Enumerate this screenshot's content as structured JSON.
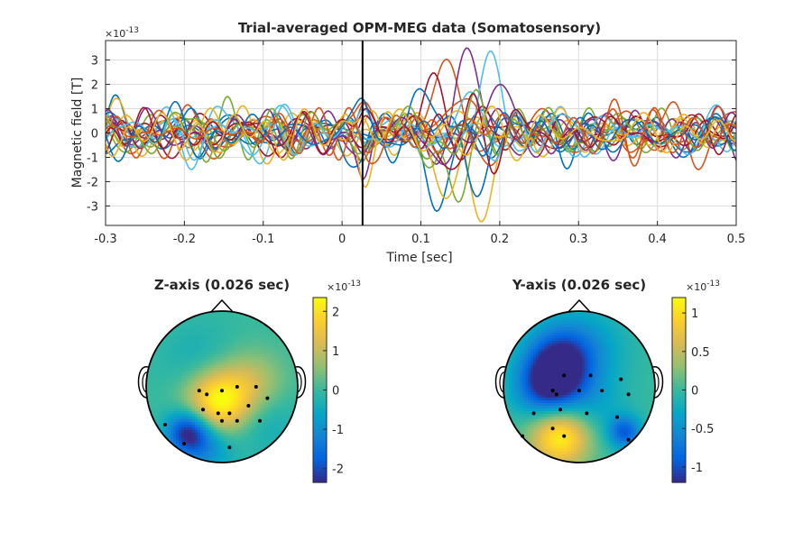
{
  "chart_data": [
    {
      "type": "line",
      "title": "Trial-averaged OPM-MEG data (Somatosensory)",
      "xlabel": "Time [sec]",
      "ylabel": "Magnetic field [T]",
      "exponent_base": "×10",
      "exponent_power": "-13",
      "xlim": [
        -0.3,
        0.5
      ],
      "ylim": [
        -3.8,
        3.8
      ],
      "xticks": [
        -0.3,
        -0.2,
        -0.1,
        0,
        0.1,
        0.2,
        0.3,
        0.4,
        0.5
      ],
      "xtick_labels": [
        "-0.3",
        "-0.2",
        "-0.1",
        "0",
        "0.1",
        "0.2",
        "0.3",
        "0.4",
        "0.5"
      ],
      "yticks": [
        3,
        2,
        1,
        0,
        -1,
        -2,
        -3
      ],
      "ytick_labels": [
        "3",
        "2",
        "1",
        "0",
        "-1",
        "-2",
        "-3"
      ],
      "grid": true,
      "marker_time": 0.026,
      "series_colors": [
        "#0072BD",
        "#D95319",
        "#EDB120",
        "#7E2F8E",
        "#77AC30",
        "#4DBEEE",
        "#A2142F"
      ],
      "series": [
        {
          "peak_time": 0.12,
          "peak_value": -3.2
        },
        {
          "peak_time": 0.13,
          "peak_value": 2.9
        },
        {
          "peak_time": 0.18,
          "peak_value": -3.7
        },
        {
          "peak_time": 0.16,
          "peak_value": 3.4
        },
        {
          "peak_time": 0.14,
          "peak_value": -2.6
        },
        {
          "peak_time": 0.19,
          "peak_value": 2.6
        },
        {
          "peak_time": 0.12,
          "peak_value": 2.4
        },
        {
          "peak_time": 0.17,
          "peak_value": -2.3
        },
        {
          "peak_time": 0.15,
          "peak_value": 2.1
        },
        {
          "peak_time": 0.13,
          "peak_value": -2.0
        },
        {
          "peak_time": 0.2,
          "peak_value": 1.8
        },
        {
          "peak_time": 0.11,
          "peak_value": -1.7
        },
        {
          "peak_time": 0.16,
          "peak_value": 1.5
        },
        {
          "peak_time": 0.14,
          "peak_value": -1.4
        },
        {
          "peak_time": 0.12,
          "peak_value": 1.2
        },
        {
          "peak_time": 0.18,
          "peak_value": -1.1
        },
        {
          "peak_time": 0.15,
          "peak_value": 1.0
        },
        {
          "peak_time": 0.13,
          "peak_value": -0.9
        },
        {
          "peak_time": 0.17,
          "peak_value": 0.8
        },
        {
          "peak_time": 0.14,
          "peak_value": -0.7
        },
        {
          "peak_time": 0.16,
          "peak_value": 0.7
        },
        {
          "peak_time": 0.12,
          "peak_value": -0.6
        },
        {
          "peak_time": 0.19,
          "peak_value": 0.6
        },
        {
          "peak_time": 0.15,
          "peak_value": -0.5
        }
      ]
    },
    {
      "type": "heatmap",
      "title": "Z-axis (0.026 sec)",
      "colorbar_ticks": [
        2,
        1,
        0,
        -1,
        -2
      ],
      "colorbar_tick_labels": [
        "2",
        "1",
        "0",
        "-1",
        "-2"
      ],
      "colorbar_range": [
        -2.35,
        2.35
      ],
      "exponent_base": "×10",
      "exponent_power": "-13",
      "colormap": "parula",
      "sources": [
        {
          "x": -0.05,
          "y": -0.2,
          "value": 2.35,
          "spread": 0.3
        },
        {
          "x": -0.45,
          "y": -0.6,
          "value": -2.3,
          "spread": 0.2
        },
        {
          "x": -0.2,
          "y": -0.8,
          "value": -1.0,
          "spread": 0.25
        },
        {
          "x": 0.4,
          "y": 0.05,
          "value": 0.9,
          "spread": 0.3
        },
        {
          "x": -0.3,
          "y": 0.35,
          "value": -0.4,
          "spread": 0.35
        },
        {
          "x": 0.55,
          "y": -0.45,
          "value": -0.5,
          "spread": 0.3
        }
      ],
      "sensors": [
        [
          -0.2,
          -0.1
        ],
        [
          0.0,
          -0.05
        ],
        [
          0.2,
          0.0
        ],
        [
          0.45,
          0.0
        ],
        [
          0.6,
          -0.15
        ],
        [
          0.35,
          -0.25
        ],
        [
          0.1,
          -0.35
        ],
        [
          -0.05,
          -0.35
        ],
        [
          -0.25,
          -0.3
        ],
        [
          -0.3,
          -0.05
        ],
        [
          0.0,
          -0.45
        ],
        [
          0.5,
          -0.45
        ],
        [
          0.2,
          -0.45
        ],
        [
          -0.75,
          -0.5
        ],
        [
          -0.5,
          -0.75
        ],
        [
          0.1,
          -0.8
        ]
      ]
    },
    {
      "type": "heatmap",
      "title": "Y-axis (0.026 sec)",
      "colorbar_ticks": [
        1,
        0.5,
        0,
        -0.5,
        -1
      ],
      "colorbar_tick_labels": [
        "1",
        "0.5",
        "0",
        "-0.5",
        "-1"
      ],
      "colorbar_range": [
        -1.2,
        1.2
      ],
      "exponent_base": "×10",
      "exponent_power": "-13",
      "colormap": "parula",
      "sources": [
        {
          "x": -0.25,
          "y": -0.65,
          "value": 1.2,
          "spread": 0.28
        },
        {
          "x": -0.4,
          "y": 0.0,
          "value": -1.15,
          "spread": 0.3
        },
        {
          "x": -0.25,
          "y": 0.35,
          "value": -0.9,
          "spread": 0.3
        },
        {
          "x": 0.6,
          "y": -0.6,
          "value": -0.9,
          "spread": 0.15
        },
        {
          "x": 0.05,
          "y": 0.5,
          "value": -0.4,
          "spread": 0.4
        },
        {
          "x": 0.2,
          "y": -0.3,
          "value": -0.25,
          "spread": 0.3
        }
      ],
      "sensors": [
        [
          -0.35,
          -0.05
        ],
        [
          -0.3,
          -0.1
        ],
        [
          -0.2,
          0.15
        ],
        [
          0.0,
          -0.05
        ],
        [
          0.15,
          0.15
        ],
        [
          0.3,
          -0.05
        ],
        [
          0.55,
          0.1
        ],
        [
          0.65,
          -0.1
        ],
        [
          0.5,
          -0.4
        ],
        [
          0.1,
          -0.35
        ],
        [
          -0.25,
          -0.3
        ],
        [
          -0.6,
          -0.35
        ],
        [
          -0.75,
          -0.65
        ],
        [
          -0.2,
          -0.65
        ],
        [
          -0.35,
          -0.55
        ],
        [
          0.65,
          -0.7
        ]
      ]
    }
  ]
}
